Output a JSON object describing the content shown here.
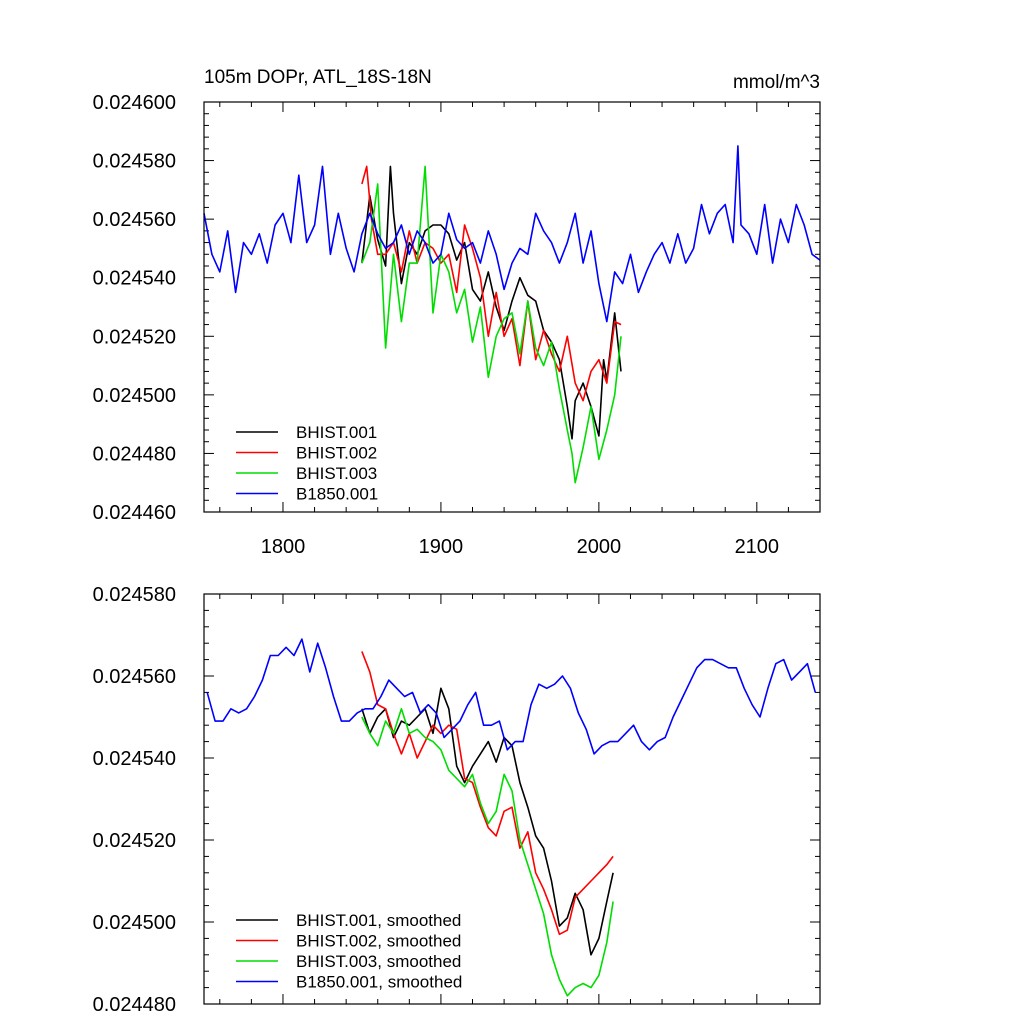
{
  "chart_data": [
    {
      "type": "line",
      "title": "105m DOPr, ATL_18S-18N",
      "units": "mmol/m^3",
      "xlim": [
        1750,
        2140
      ],
      "ylim": [
        0.02446,
        0.0246
      ],
      "xticks": [
        1800,
        1900,
        2000,
        2100
      ],
      "xtick_labels": [
        "1800",
        "1900",
        "2000",
        "2100"
      ],
      "yticks": [
        0.02446,
        0.02448,
        0.0245,
        0.02452,
        0.02454,
        0.02456,
        0.02458,
        0.0246
      ],
      "ytick_labels": [
        "0.024460",
        "0.024480",
        "0.024500",
        "0.024520",
        "0.024540",
        "0.024560",
        "0.024580",
        "0.024600"
      ],
      "legend_position": "bottom-left",
      "series": [
        {
          "name": "BHIST.001",
          "color": "#000000",
          "x": [
            1850,
            1855,
            1860,
            1865,
            1868,
            1870,
            1875,
            1880,
            1885,
            1890,
            1895,
            1900,
            1905,
            1910,
            1915,
            1920,
            1925,
            1930,
            1935,
            1940,
            1945,
            1950,
            1955,
            1960,
            1965,
            1970,
            1975,
            1980,
            1983,
            1985,
            1990,
            1995,
            2000,
            2003,
            2005,
            2010,
            2014
          ],
          "y": [
            0.024545,
            0.024568,
            0.024553,
            0.024544,
            0.024578,
            0.024562,
            0.024538,
            0.024552,
            0.024548,
            0.024556,
            0.024558,
            0.024558,
            0.024555,
            0.024546,
            0.024552,
            0.024536,
            0.024532,
            0.024542,
            0.02453,
            0.024522,
            0.024532,
            0.02454,
            0.024534,
            0.024532,
            0.024522,
            0.024518,
            0.024512,
            0.024496,
            0.024485,
            0.024498,
            0.024504,
            0.024496,
            0.024486,
            0.024512,
            0.024505,
            0.024528,
            0.024508
          ]
        },
        {
          "name": "BHIST.002",
          "color": "#ff0000",
          "x": [
            1850,
            1853,
            1856,
            1860,
            1865,
            1870,
            1875,
            1880,
            1885,
            1890,
            1895,
            1900,
            1905,
            1910,
            1915,
            1920,
            1925,
            1930,
            1935,
            1940,
            1945,
            1950,
            1955,
            1960,
            1965,
            1970,
            1975,
            1980,
            1985,
            1990,
            1995,
            2000,
            2005,
            2010,
            2014
          ],
          "y": [
            0.024572,
            0.024578,
            0.02456,
            0.024548,
            0.024548,
            0.024552,
            0.024542,
            0.024556,
            0.024545,
            0.024552,
            0.02455,
            0.024545,
            0.024548,
            0.024535,
            0.024558,
            0.02455,
            0.02454,
            0.02452,
            0.024535,
            0.02452,
            0.024526,
            0.02451,
            0.024532,
            0.024512,
            0.024522,
            0.024514,
            0.024508,
            0.02452,
            0.024504,
            0.024498,
            0.024508,
            0.024512,
            0.024504,
            0.024525,
            0.024524
          ]
        },
        {
          "name": "BHIST.003",
          "color": "#00dd00",
          "x": [
            1850,
            1855,
            1860,
            1865,
            1870,
            1875,
            1880,
            1885,
            1890,
            1895,
            1900,
            1905,
            1910,
            1915,
            1920,
            1925,
            1930,
            1935,
            1940,
            1945,
            1950,
            1955,
            1960,
            1965,
            1970,
            1975,
            1980,
            1983,
            1985,
            1990,
            1995,
            2000,
            2005,
            2010,
            2014
          ],
          "y": [
            0.024545,
            0.024552,
            0.024572,
            0.024516,
            0.024548,
            0.024525,
            0.024545,
            0.024545,
            0.024578,
            0.024528,
            0.024548,
            0.024542,
            0.024528,
            0.024536,
            0.024518,
            0.02453,
            0.024506,
            0.02452,
            0.024526,
            0.024528,
            0.024514,
            0.024532,
            0.024516,
            0.02451,
            0.024518,
            0.024502,
            0.024488,
            0.02448,
            0.02447,
            0.024482,
            0.024496,
            0.024478,
            0.024488,
            0.0245,
            0.02452
          ]
        },
        {
          "name": "B1850.001",
          "color": "#0000ff",
          "x": [
            1750,
            1755,
            1760,
            1765,
            1770,
            1775,
            1780,
            1785,
            1790,
            1795,
            1800,
            1805,
            1810,
            1815,
            1820,
            1825,
            1830,
            1835,
            1840,
            1845,
            1850,
            1855,
            1860,
            1865,
            1870,
            1875,
            1880,
            1885,
            1890,
            1895,
            1900,
            1905,
            1910,
            1915,
            1920,
            1925,
            1930,
            1935,
            1940,
            1945,
            1950,
            1955,
            1960,
            1965,
            1970,
            1975,
            1980,
            1985,
            1990,
            1995,
            2000,
            2005,
            2010,
            2015,
            2020,
            2025,
            2030,
            2035,
            2040,
            2045,
            2050,
            2055,
            2060,
            2065,
            2070,
            2075,
            2080,
            2085,
            2088,
            2090,
            2095,
            2100,
            2105,
            2110,
            2115,
            2120,
            2125,
            2130,
            2135,
            2140
          ],
          "y": [
            0.024562,
            0.024548,
            0.024542,
            0.024556,
            0.024535,
            0.024552,
            0.024548,
            0.024555,
            0.024545,
            0.024558,
            0.024562,
            0.024552,
            0.024575,
            0.024552,
            0.024558,
            0.024578,
            0.024548,
            0.024562,
            0.02455,
            0.024542,
            0.024555,
            0.024562,
            0.024555,
            0.02455,
            0.024552,
            0.024558,
            0.024548,
            0.024556,
            0.024552,
            0.024545,
            0.024548,
            0.024562,
            0.024553,
            0.02455,
            0.024552,
            0.024545,
            0.024556,
            0.024548,
            0.024536,
            0.024545,
            0.02455,
            0.024548,
            0.024562,
            0.024556,
            0.024552,
            0.024545,
            0.024552,
            0.024562,
            0.024545,
            0.024556,
            0.024538,
            0.024525,
            0.024542,
            0.024538,
            0.024548,
            0.024535,
            0.024542,
            0.024548,
            0.024552,
            0.024545,
            0.024555,
            0.024545,
            0.02455,
            0.024565,
            0.024555,
            0.024562,
            0.024565,
            0.024552,
            0.024585,
            0.024558,
            0.024555,
            0.024548,
            0.024565,
            0.024545,
            0.02456,
            0.024552,
            0.024565,
            0.024558,
            0.024548,
            0.024546
          ]
        }
      ]
    },
    {
      "type": "line",
      "title": "",
      "xlim": [
        1750,
        2140
      ],
      "ylim": [
        0.02448,
        0.02458
      ],
      "yticks": [
        0.02448,
        0.0245,
        0.02452,
        0.02454,
        0.02456,
        0.02458
      ],
      "ytick_labels": [
        "0.024480",
        "0.024500",
        "0.024520",
        "0.024540",
        "0.024560",
        "0.024580"
      ],
      "legend_position": "bottom-left",
      "series": [
        {
          "name": "BHIST.001, smoothed",
          "color": "#000000",
          "x": [
            1850,
            1855,
            1860,
            1865,
            1870,
            1875,
            1880,
            1885,
            1890,
            1895,
            1900,
            1905,
            1910,
            1915,
            1920,
            1925,
            1930,
            1935,
            1940,
            1945,
            1950,
            1955,
            1960,
            1965,
            1970,
            1975,
            1980,
            1985,
            1990,
            1995,
            2000,
            2005,
            2009
          ],
          "y": [
            0.024552,
            0.024546,
            0.02455,
            0.024552,
            0.024545,
            0.024549,
            0.024548,
            0.02455,
            0.024552,
            0.024546,
            0.024557,
            0.024552,
            0.024538,
            0.024534,
            0.024538,
            0.024541,
            0.024544,
            0.024539,
            0.024545,
            0.024543,
            0.024534,
            0.024528,
            0.024521,
            0.024518,
            0.02451,
            0.024499,
            0.024501,
            0.024507,
            0.024503,
            0.024492,
            0.024496,
            0.024505,
            0.024512
          ]
        },
        {
          "name": "BHIST.002, smoothed",
          "color": "#ff0000",
          "x": [
            1850,
            1855,
            1860,
            1865,
            1870,
            1875,
            1880,
            1885,
            1890,
            1895,
            1900,
            1905,
            1910,
            1915,
            1920,
            1925,
            1930,
            1935,
            1940,
            1945,
            1950,
            1955,
            1960,
            1965,
            1970,
            1975,
            1980,
            1985,
            1990,
            1995,
            2000,
            2005,
            2009
          ],
          "y": [
            0.024566,
            0.024561,
            0.024553,
            0.024552,
            0.024546,
            0.024541,
            0.024546,
            0.02454,
            0.024544,
            0.024548,
            0.024546,
            0.024548,
            0.024547,
            0.024535,
            0.024534,
            0.024528,
            0.024523,
            0.024521,
            0.024527,
            0.024528,
            0.024518,
            0.024522,
            0.024512,
            0.024508,
            0.024503,
            0.024497,
            0.024498,
            0.024506,
            0.024508,
            0.02451,
            0.024512,
            0.024514,
            0.024516
          ]
        },
        {
          "name": "BHIST.003, smoothed",
          "color": "#00dd00",
          "x": [
            1850,
            1855,
            1860,
            1865,
            1870,
            1875,
            1880,
            1885,
            1890,
            1895,
            1900,
            1905,
            1910,
            1915,
            1920,
            1925,
            1930,
            1935,
            1940,
            1945,
            1950,
            1955,
            1960,
            1965,
            1970,
            1975,
            1980,
            1985,
            1990,
            1995,
            2000,
            2005,
            2009
          ],
          "y": [
            0.02455,
            0.024546,
            0.024543,
            0.024549,
            0.024546,
            0.024552,
            0.024546,
            0.024547,
            0.024545,
            0.024544,
            0.024542,
            0.024537,
            0.024535,
            0.024533,
            0.024536,
            0.024529,
            0.024524,
            0.024527,
            0.024536,
            0.024532,
            0.02452,
            0.024514,
            0.024508,
            0.024502,
            0.024492,
            0.024486,
            0.024482,
            0.024484,
            0.024485,
            0.024484,
            0.024487,
            0.024495,
            0.024505
          ]
        },
        {
          "name": "B1850.001, smoothed",
          "color": "#0000ff",
          "x": [
            1752,
            1757,
            1762,
            1767,
            1772,
            1777,
            1782,
            1787,
            1792,
            1797,
            1802,
            1807,
            1812,
            1817,
            1822,
            1827,
            1832,
            1837,
            1842,
            1847,
            1852,
            1857,
            1862,
            1867,
            1872,
            1877,
            1882,
            1887,
            1892,
            1897,
            1902,
            1907,
            1912,
            1917,
            1922,
            1927,
            1932,
            1937,
            1942,
            1947,
            1952,
            1957,
            1962,
            1967,
            1972,
            1977,
            1982,
            1987,
            1992,
            1997,
            2002,
            2007,
            2012,
            2017,
            2022,
            2027,
            2032,
            2037,
            2042,
            2047,
            2052,
            2057,
            2062,
            2067,
            2072,
            2077,
            2082,
            2087,
            2092,
            2097,
            2102,
            2107,
            2112,
            2117,
            2122,
            2127,
            2132,
            2137
          ],
          "y": [
            0.024556,
            0.024549,
            0.024549,
            0.024552,
            0.024551,
            0.024552,
            0.024555,
            0.024559,
            0.024565,
            0.024565,
            0.024567,
            0.024565,
            0.024569,
            0.024561,
            0.024568,
            0.024562,
            0.024555,
            0.024549,
            0.024549,
            0.024551,
            0.024552,
            0.024552,
            0.024555,
            0.024559,
            0.024557,
            0.024555,
            0.024556,
            0.024551,
            0.024553,
            0.024551,
            0.024545,
            0.024547,
            0.024549,
            0.024553,
            0.024556,
            0.024548,
            0.024548,
            0.024549,
            0.024542,
            0.024544,
            0.024544,
            0.024553,
            0.024558,
            0.024557,
            0.024558,
            0.02456,
            0.024557,
            0.024551,
            0.024547,
            0.024541,
            0.024543,
            0.024544,
            0.024544,
            0.024546,
            0.024548,
            0.024544,
            0.024542,
            0.024544,
            0.024545,
            0.02455,
            0.024554,
            0.024558,
            0.024562,
            0.024564,
            0.024564,
            0.024563,
            0.024562,
            0.024562,
            0.024557,
            0.024553,
            0.02455,
            0.024557,
            0.024563,
            0.024564,
            0.024559,
            0.024561,
            0.024563,
            0.024556
          ]
        }
      ]
    }
  ]
}
